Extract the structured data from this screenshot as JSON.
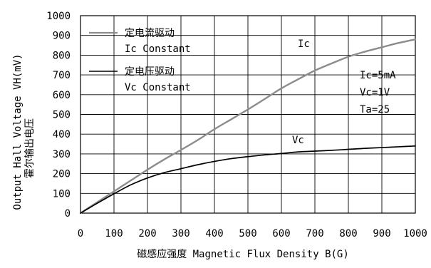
{
  "chart_data": {
    "type": "line",
    "xlabel": "磁感应强度 Magnetic Flux Density B(G)",
    "ylabel_en": "Output Hall Voltage VH(mV)",
    "ylabel_zh": "霍尔输出电压",
    "xlim": [
      0,
      1000
    ],
    "ylim": [
      0,
      1000
    ],
    "x_ticks": [
      0,
      100,
      200,
      300,
      400,
      500,
      600,
      700,
      800,
      900,
      1000
    ],
    "y_ticks": [
      0,
      100,
      200,
      300,
      400,
      500,
      600,
      700,
      800,
      900,
      1000
    ],
    "grid": true,
    "legend_position": "top-left",
    "series": [
      {
        "name": "定电流驱动",
        "name_en": "Ic Constant",
        "curve_label": "Ic",
        "color": "#8c8c8c",
        "x": [
          0,
          50,
          100,
          150,
          200,
          250,
          300,
          350,
          400,
          450,
          500,
          550,
          600,
          650,
          700,
          750,
          800,
          850,
          900,
          950,
          1000
        ],
        "y": [
          0,
          55,
          110,
          165,
          220,
          272,
          320,
          370,
          425,
          475,
          525,
          578,
          632,
          678,
          722,
          758,
          792,
          818,
          840,
          862,
          880
        ]
      },
      {
        "name": "定电压驱动",
        "name_en": "Vc Constant",
        "curve_label": "Vc",
        "color": "#000000",
        "x": [
          0,
          50,
          100,
          150,
          200,
          250,
          300,
          350,
          400,
          450,
          500,
          550,
          600,
          650,
          700,
          750,
          800,
          850,
          900,
          950,
          1000
        ],
        "y": [
          0,
          50,
          98,
          143,
          178,
          205,
          225,
          245,
          262,
          276,
          286,
          295,
          302,
          310,
          314,
          318,
          323,
          328,
          332,
          336,
          340
        ]
      }
    ],
    "annotations": [
      "Ic=5mA",
      "Vc=1V",
      "Ta=25"
    ]
  }
}
